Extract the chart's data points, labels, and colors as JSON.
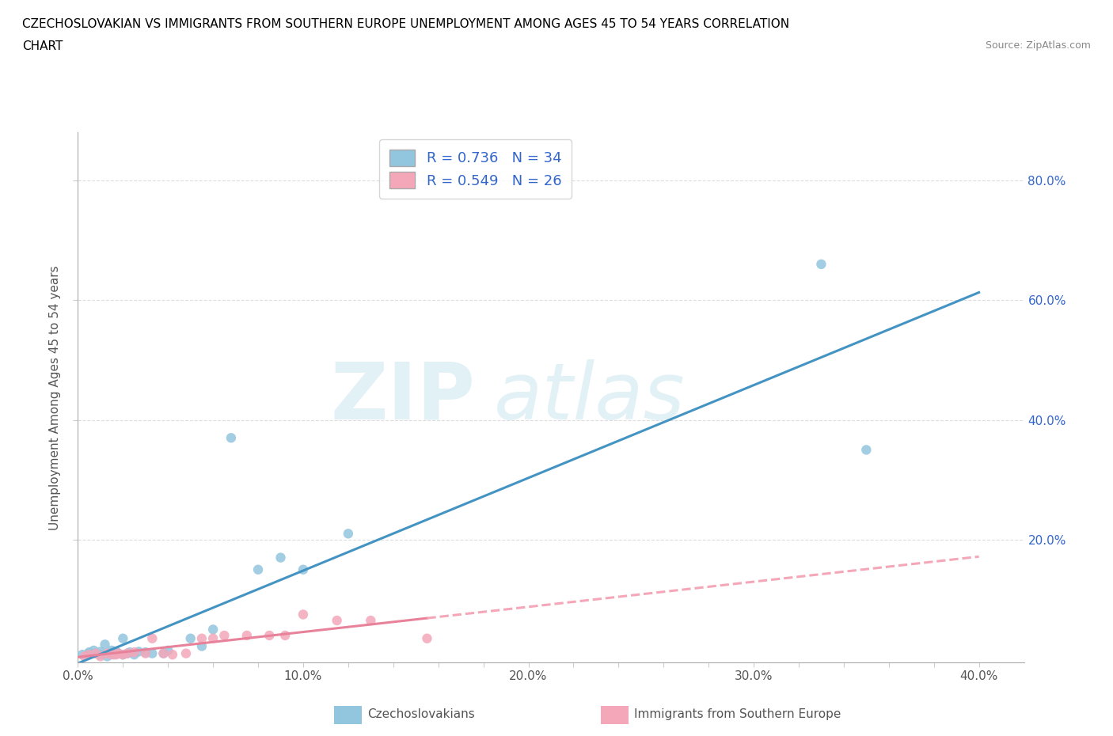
{
  "title_line1": "CZECHOSLOVAKIAN VS IMMIGRANTS FROM SOUTHERN EUROPE UNEMPLOYMENT AMONG AGES 45 TO 54 YEARS CORRELATION",
  "title_line2": "CHART",
  "source_text": "Source: ZipAtlas.com",
  "ylabel": "Unemployment Among Ages 45 to 54 years",
  "xlim": [
    0.0,
    0.42
  ],
  "ylim": [
    -0.005,
    0.88
  ],
  "xtick_labels": [
    "0.0%",
    "",
    "",
    "",
    "",
    "10.0%",
    "",
    "",
    "",
    "",
    "20.0%",
    "",
    "",
    "",
    "",
    "30.0%",
    "",
    "",
    "",
    "",
    "40.0%"
  ],
  "xtick_vals": [
    0.0,
    0.02,
    0.04,
    0.06,
    0.08,
    0.1,
    0.12,
    0.14,
    0.16,
    0.18,
    0.2,
    0.22,
    0.24,
    0.26,
    0.28,
    0.3,
    0.32,
    0.34,
    0.36,
    0.38,
    0.4
  ],
  "ytick_labels": [
    "20.0%",
    "40.0%",
    "60.0%",
    "80.0%"
  ],
  "ytick_vals": [
    0.2,
    0.4,
    0.6,
    0.8
  ],
  "R1": 0.736,
  "N1": 34,
  "R2": 0.549,
  "N2": 26,
  "blue_scatter_color": "#92C5DE",
  "pink_scatter_color": "#F4A7B9",
  "blue_line_color": "#4393C3",
  "pink_solid_color": "#E8829A",
  "pink_dash_color": "#F4A7B9",
  "legend_text_color": "#3366CC",
  "bg_color": "#FFFFFF",
  "grid_color": "#DDDDDD",
  "blue_x": [
    0.002,
    0.005,
    0.005,
    0.007,
    0.008,
    0.01,
    0.01,
    0.012,
    0.013,
    0.015,
    0.015,
    0.016,
    0.017,
    0.018,
    0.02,
    0.02,
    0.022,
    0.023,
    0.025,
    0.027,
    0.03,
    0.033,
    0.038,
    0.04,
    0.05,
    0.055,
    0.06,
    0.068,
    0.08,
    0.09,
    0.1,
    0.12,
    0.33,
    0.35
  ],
  "blue_y": [
    0.008,
    0.01,
    0.012,
    0.015,
    0.01,
    0.008,
    0.013,
    0.025,
    0.005,
    0.01,
    0.015,
    0.008,
    0.013,
    0.01,
    0.008,
    0.035,
    0.01,
    0.012,
    0.008,
    0.013,
    0.012,
    0.01,
    0.01,
    0.015,
    0.035,
    0.022,
    0.05,
    0.37,
    0.15,
    0.17,
    0.15,
    0.21,
    0.66,
    0.35
  ],
  "pink_x": [
    0.003,
    0.005,
    0.008,
    0.01,
    0.013,
    0.015,
    0.017,
    0.018,
    0.02,
    0.022,
    0.025,
    0.03,
    0.033,
    0.038,
    0.042,
    0.048,
    0.055,
    0.06,
    0.065,
    0.075,
    0.085,
    0.092,
    0.1,
    0.115,
    0.13,
    0.155
  ],
  "pink_y": [
    0.005,
    0.008,
    0.01,
    0.005,
    0.01,
    0.008,
    0.008,
    0.01,
    0.008,
    0.01,
    0.012,
    0.01,
    0.035,
    0.01,
    0.008,
    0.01,
    0.035,
    0.035,
    0.04,
    0.04,
    0.04,
    0.04,
    0.075,
    0.065,
    0.065,
    0.035
  ],
  "legend1_label": "Czechoslovakians",
  "legend2_label": "Immigrants from Southern Europe"
}
